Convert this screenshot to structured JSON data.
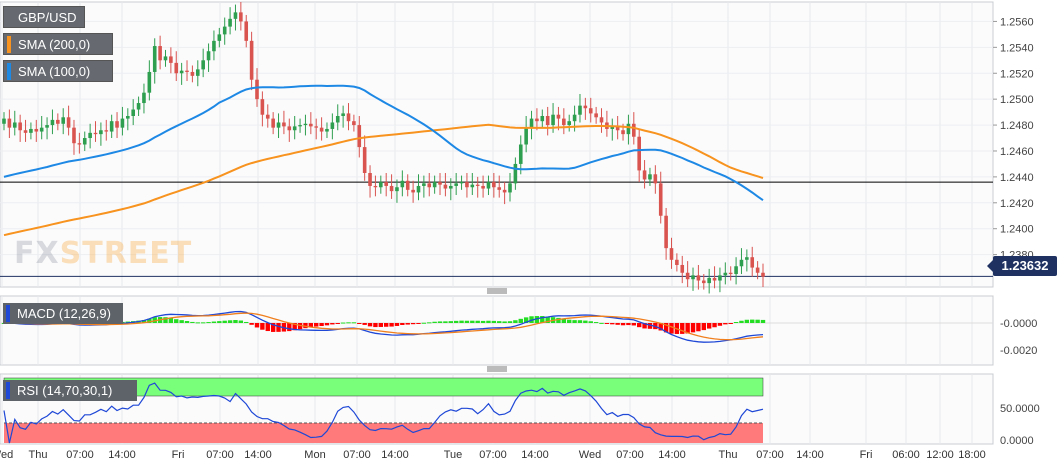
{
  "symbol_label": "GBP/USD",
  "legend": {
    "sma200": {
      "label": "SMA (200,0)",
      "color": "#f7931e"
    },
    "sma100": {
      "label": "SMA (100,0)",
      "color": "#1e88e5"
    }
  },
  "watermark": {
    "part1": "FX",
    "part2": "STREET"
  },
  "price_tag": "1.23632",
  "macd_label": "MACD (12,26,9)",
  "rsi_label": "RSI (14,70,30,1)",
  "colors": {
    "up": "#2e9e4f",
    "down": "#d9534f",
    "macd_line": "#1f48d6",
    "signal_line": "#f07f1d",
    "hist_up": "#22dd22",
    "hist_down": "#ff0000",
    "rsi_line": "#1f48d6",
    "rsi_overbought": "#7aff7a",
    "rsi_oversold": "#ff7a7a"
  },
  "chart_data": [
    {
      "type": "candlestick",
      "title": "GBP/USD",
      "y_ticks": [
        "1.2560",
        "1.2540",
        "1.2520",
        "1.2500",
        "1.2480",
        "1.2460",
        "1.2440",
        "1.2420",
        "1.2400",
        "1.2380"
      ],
      "ylim": [
        1.2355,
        1.2575
      ],
      "x_ticks": [
        "Wed",
        "Thu",
        "07:00",
        "14:00",
        "Fri",
        "07:00",
        "14:00",
        "Mon",
        "07:00",
        "14:00",
        "Tue",
        "07:00",
        "14:00",
        "Wed",
        "07:00",
        "14:00",
        "Thu",
        "07:00",
        "14:00",
        "Fri",
        "06:00",
        "12:00",
        "18:00"
      ],
      "horizontal_line": 1.2436,
      "last_price": 1.23632,
      "close_series": [
        1.2485,
        1.2478,
        1.2482,
        1.2476,
        1.2474,
        1.2477,
        1.2475,
        1.2478,
        1.248,
        1.2484,
        1.2481,
        1.2486,
        1.2478,
        1.2466,
        1.2465,
        1.247,
        1.2474,
        1.2473,
        1.2476,
        1.2475,
        1.2483,
        1.2478,
        1.2485,
        1.2487,
        1.2492,
        1.2497,
        1.2505,
        1.2521,
        1.2541,
        1.253,
        1.2533,
        1.2528,
        1.252,
        1.2522,
        1.2521,
        1.2518,
        1.2523,
        1.253,
        1.2537,
        1.2545,
        1.255,
        1.2556,
        1.2562,
        1.2567,
        1.256,
        1.2545,
        1.2515,
        1.25,
        1.2488,
        1.2485,
        1.2478,
        1.2482,
        1.2479,
        1.2476,
        1.2479,
        1.248,
        1.2481,
        1.2479,
        1.2478,
        1.2475,
        1.2477,
        1.2482,
        1.2487,
        1.2489,
        1.2483,
        1.248,
        1.2463,
        1.2443,
        1.2433,
        1.2432,
        1.2436,
        1.2433,
        1.2429,
        1.2432,
        1.2437,
        1.243,
        1.2428,
        1.2433,
        1.2435,
        1.2432,
        1.2436,
        1.2434,
        1.2431,
        1.2433,
        1.2435,
        1.2436,
        1.2432,
        1.2434,
        1.2433,
        1.2431,
        1.2436,
        1.2432,
        1.243,
        1.2428,
        1.2435,
        1.245,
        1.2465,
        1.2478,
        1.2485,
        1.2483,
        1.2487,
        1.248,
        1.2488,
        1.2485,
        1.248,
        1.2483,
        1.2488,
        1.2495,
        1.2493,
        1.2489,
        1.2486,
        1.2482,
        1.2477,
        1.2479,
        1.2476,
        1.2473,
        1.2481,
        1.2471,
        1.2445,
        1.2438,
        1.2442,
        1.2435,
        1.241,
        1.2385,
        1.2376,
        1.2372,
        1.2366,
        1.2361,
        1.2364,
        1.236,
        1.2358,
        1.2362,
        1.236,
        1.2364,
        1.2366,
        1.2365,
        1.2371,
        1.2376,
        1.2378,
        1.237,
        1.2366,
        1.2363
      ]
    },
    {
      "type": "line",
      "title": "MACD (12,26,9)",
      "y_ticks": [
        "-0.0000",
        "-0.0020"
      ]
    },
    {
      "type": "line",
      "title": "RSI (14,70,30,1)",
      "y_ticks": [
        "50.0000",
        "0.0000"
      ]
    }
  ]
}
